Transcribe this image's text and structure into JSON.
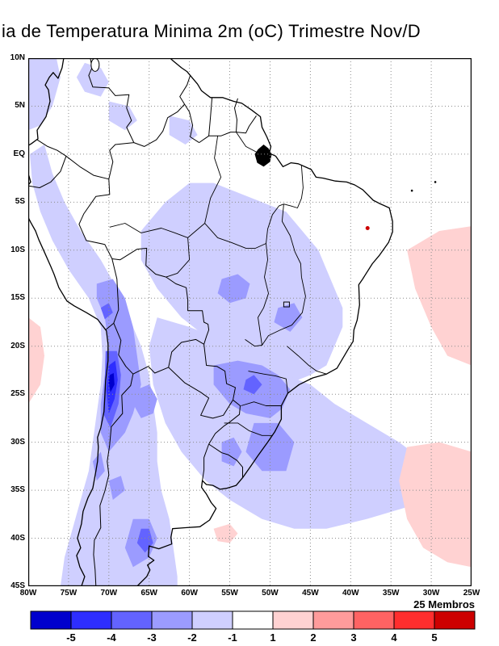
{
  "title": "ia de Temperatura Minima 2m (oC) Trimestre Nov/D",
  "members_label": "25 Membros",
  "axes": {
    "lat_ticks": [
      "10N",
      "5N",
      "EQ",
      "5S",
      "10S",
      "15S",
      "20S",
      "25S",
      "30S",
      "35S",
      "40S",
      "45S"
    ],
    "lon_ticks": [
      "80W",
      "75W",
      "70W",
      "65W",
      "60W",
      "55W",
      "50W",
      "45W",
      "40W",
      "35W",
      "30W",
      "25W"
    ]
  },
  "colorbar": {
    "tick_labels": [
      "-5",
      "-4",
      "-3",
      "-2",
      "-1",
      "1",
      "2",
      "3",
      "4",
      "5"
    ],
    "segment_colors": [
      "#0000cd",
      "#2e2eff",
      "#6363ff",
      "#9b9bff",
      "#cfcfff",
      "#ffffff",
      "#ffd2d2",
      "#ff9b9b",
      "#ff6363",
      "#ff2e2e",
      "#cd0000"
    ]
  },
  "map_colors": {
    "grid": "#8c8c8c",
    "outline": "#000000",
    "marker_red": "#cc0000"
  },
  "chart_data": {
    "type": "heatmap",
    "title": "ia de Temperatura Minima 2m (oC) Trimestre Nov/D",
    "units": "oC",
    "ensemble": "25 Membros",
    "x_ticks": [
      "80W",
      "75W",
      "70W",
      "65W",
      "60W",
      "55W",
      "50W",
      "45W",
      "40W",
      "35W",
      "30W",
      "25W"
    ],
    "y_ticks": [
      "10N",
      "5N",
      "EQ",
      "5S",
      "10S",
      "15S",
      "20S",
      "25S",
      "30S",
      "35S",
      "40S",
      "45S"
    ],
    "scale_boundaries": [
      -5,
      -4,
      -3,
      -2,
      -1,
      1,
      2,
      3,
      4,
      5
    ],
    "legend_position": "bottom",
    "grid": "dotted",
    "anomaly_regions": [
      {
        "level": "-2 to -1",
        "palette_index": 4,
        "polygon": [
          [
            -78,
            1
          ],
          [
            -77,
            -2
          ],
          [
            -75.5,
            -5
          ],
          [
            -73.5,
            -8
          ],
          [
            -71,
            -11
          ],
          [
            -69,
            -14
          ],
          [
            -67.5,
            -17
          ],
          [
            -66,
            -20
          ],
          [
            -65,
            -23
          ],
          [
            -64.5,
            -26
          ],
          [
            -64,
            -29
          ],
          [
            -64,
            -32
          ],
          [
            -63.5,
            -35
          ],
          [
            -62.5,
            -38
          ],
          [
            -62,
            -41
          ],
          [
            -61.5,
            -44
          ],
          [
            -61.5,
            -45
          ],
          [
            -76,
            -45
          ],
          [
            -75.5,
            -42
          ],
          [
            -74.5,
            -39
          ],
          [
            -73.5,
            -36
          ],
          [
            -72.5,
            -33
          ],
          [
            -72,
            -30
          ],
          [
            -71.5,
            -27
          ],
          [
            -71,
            -24
          ],
          [
            -70.8,
            -21
          ],
          [
            -71,
            -18
          ],
          [
            -72.5,
            -15
          ],
          [
            -75,
            -12
          ],
          [
            -77,
            -9
          ],
          [
            -78.5,
            -6
          ],
          [
            -79.5,
            -3
          ],
          [
            -79.8,
            0
          ]
        ]
      },
      {
        "level": "-2 to -1",
        "palette_index": 4,
        "polygon": [
          [
            -60,
            -3
          ],
          [
            -57,
            -3
          ],
          [
            -54,
            -4
          ],
          [
            -51,
            -5
          ],
          [
            -48,
            -6
          ],
          [
            -46,
            -8
          ],
          [
            -44,
            -10
          ],
          [
            -43,
            -12
          ],
          [
            -42,
            -14
          ],
          [
            -41,
            -16
          ],
          [
            -41,
            -18
          ],
          [
            -42,
            -20
          ],
          [
            -43,
            -22
          ],
          [
            -45,
            -23
          ],
          [
            -48,
            -24
          ],
          [
            -51,
            -24
          ],
          [
            -54,
            -23
          ],
          [
            -56,
            -21
          ],
          [
            -58,
            -19
          ],
          [
            -61,
            -17
          ],
          [
            -64,
            -14
          ],
          [
            -66,
            -11
          ],
          [
            -66,
            -8
          ],
          [
            -63,
            -5
          ]
        ]
      },
      {
        "level": "-2 to -1",
        "palette_index": 4,
        "polygon": [
          [
            -64,
            -17
          ],
          [
            -60,
            -18
          ],
          [
            -57,
            -19
          ],
          [
            -54,
            -20
          ],
          [
            -51,
            -21
          ],
          [
            -48,
            -23
          ],
          [
            -45,
            -24
          ],
          [
            -42,
            -26
          ],
          [
            -38,
            -28
          ],
          [
            -34,
            -30
          ],
          [
            -30,
            -32.5
          ],
          [
            -28,
            -34
          ],
          [
            -30,
            -36
          ],
          [
            -34,
            -37
          ],
          [
            -38,
            -38
          ],
          [
            -43,
            -39
          ],
          [
            -47,
            -39
          ],
          [
            -51,
            -38
          ],
          [
            -55,
            -36
          ],
          [
            -58,
            -34
          ],
          [
            -61,
            -31
          ],
          [
            -63,
            -28
          ],
          [
            -64.5,
            -24
          ],
          [
            -65,
            -20
          ]
        ]
      },
      {
        "level": "-2 to -1",
        "palette_index": 4,
        "polygon": [
          [
            -80,
            10
          ],
          [
            -76.5,
            10
          ],
          [
            -76,
            8
          ],
          [
            -77,
            5
          ],
          [
            -78.5,
            3
          ],
          [
            -80,
            2.5
          ]
        ]
      },
      {
        "level": "-2 to -1",
        "palette_index": 4,
        "polygon": [
          [
            -73,
            9.5
          ],
          [
            -71,
            9
          ],
          [
            -70,
            7.5
          ],
          [
            -71,
            6
          ],
          [
            -73,
            6.5
          ],
          [
            -74,
            8
          ]
        ]
      },
      {
        "level": "-2 to -1",
        "palette_index": 4,
        "polygon": [
          [
            -70,
            5.5
          ],
          [
            -67.5,
            5
          ],
          [
            -66.5,
            3.5
          ],
          [
            -68,
            2.5
          ],
          [
            -70,
            3.5
          ]
        ]
      },
      {
        "level": "-2 to -1",
        "palette_index": 4,
        "polygon": [
          [
            -62.5,
            4
          ],
          [
            -60,
            3.5
          ],
          [
            -59,
            2
          ],
          [
            -60.5,
            1
          ],
          [
            -62.5,
            2
          ]
        ]
      },
      {
        "level": "-3 to -2",
        "palette_index": 3,
        "polygon": [
          [
            -71.5,
            -13.5
          ],
          [
            -69.5,
            -13
          ],
          [
            -68,
            -15
          ],
          [
            -67,
            -18
          ],
          [
            -66.5,
            -21
          ],
          [
            -66,
            -24
          ],
          [
            -67,
            -27
          ],
          [
            -68,
            -29
          ],
          [
            -70,
            -31
          ],
          [
            -71,
            -29
          ],
          [
            -71,
            -26
          ],
          [
            -70.5,
            -23
          ],
          [
            -70,
            -20
          ],
          [
            -70.5,
            -17
          ],
          [
            -71.5,
            -15
          ]
        ]
      },
      {
        "level": "-3 to -2",
        "palette_index": 3,
        "polygon": [
          [
            -57,
            -22
          ],
          [
            -54,
            -21.5
          ],
          [
            -51,
            -22
          ],
          [
            -49,
            -23
          ],
          [
            -47.5,
            -24.5
          ],
          [
            -48.5,
            -26.5
          ],
          [
            -50,
            -27.5
          ],
          [
            -53,
            -27
          ],
          [
            -55,
            -26
          ],
          [
            -57,
            -24
          ]
        ]
      },
      {
        "level": "-3 to -2",
        "palette_index": 3,
        "polygon": [
          [
            -56,
            -13
          ],
          [
            -54,
            -12.5
          ],
          [
            -52.5,
            -13.5
          ],
          [
            -53,
            -15
          ],
          [
            -55,
            -15.5
          ],
          [
            -56.5,
            -14.5
          ]
        ]
      },
      {
        "level": "-3 to -2",
        "palette_index": 3,
        "polygon": [
          [
            -49,
            -16
          ],
          [
            -47,
            -15.5
          ],
          [
            -46,
            -17
          ],
          [
            -47.5,
            -18.5
          ],
          [
            -49.5,
            -17.5
          ]
        ]
      },
      {
        "level": "-3 to -2",
        "palette_index": 3,
        "polygon": [
          [
            -67,
            -38
          ],
          [
            -65,
            -38
          ],
          [
            -64,
            -40
          ],
          [
            -65,
            -42
          ],
          [
            -67,
            -43
          ],
          [
            -68,
            -41
          ]
        ]
      },
      {
        "level": "-3 to -2",
        "palette_index": 3,
        "polygon": [
          [
            -70,
            -34
          ],
          [
            -68.5,
            -33.5
          ],
          [
            -68,
            -35
          ],
          [
            -69.5,
            -36
          ]
        ]
      },
      {
        "level": "-3 to -2",
        "palette_index": 3,
        "polygon": [
          [
            -52,
            -28
          ],
          [
            -49,
            -28
          ],
          [
            -47,
            -30
          ],
          [
            -48,
            -33
          ],
          [
            -51,
            -33
          ],
          [
            -53,
            -31
          ]
        ]
      },
      {
        "level": "-3 to -2",
        "palette_index": 3,
        "polygon": [
          [
            -72,
            -32
          ],
          [
            -71,
            -31
          ],
          [
            -70.5,
            -33
          ],
          [
            -71.5,
            -34
          ]
        ]
      },
      {
        "level": "-3 to -2",
        "palette_index": 3,
        "polygon": [
          [
            -66.5,
            -24.5
          ],
          [
            -65,
            -24
          ],
          [
            -64,
            -25.5
          ],
          [
            -64.5,
            -27
          ],
          [
            -66,
            -27.5
          ],
          [
            -67,
            -26
          ]
        ]
      },
      {
        "level": "-3 to -2",
        "palette_index": 3,
        "polygon": [
          [
            -56,
            -30
          ],
          [
            -54.5,
            -29.5
          ],
          [
            -53.5,
            -31
          ],
          [
            -54.5,
            -32.5
          ],
          [
            -56,
            -32
          ]
        ]
      },
      {
        "level": "-4 to -3",
        "palette_index": 2,
        "polygon": [
          [
            -70.4,
            -20.5
          ],
          [
            -69,
            -20.5
          ],
          [
            -68.5,
            -23
          ],
          [
            -68.8,
            -26
          ],
          [
            -69.8,
            -28.5
          ],
          [
            -70.7,
            -27
          ],
          [
            -70.5,
            -23.5
          ]
        ]
      },
      {
        "level": "-4 to -3",
        "palette_index": 2,
        "polygon": [
          [
            -71,
            -16
          ],
          [
            -70,
            -15.5
          ],
          [
            -69.5,
            -16.5
          ],
          [
            -70.5,
            -17.2
          ]
        ]
      },
      {
        "level": "-4 to -3",
        "palette_index": 2,
        "polygon": [
          [
            -66,
            -39
          ],
          [
            -65,
            -39
          ],
          [
            -64.5,
            -40.5
          ],
          [
            -65.5,
            -41.5
          ],
          [
            -66.5,
            -40.5
          ]
        ]
      },
      {
        "level": "-4 to -3",
        "palette_index": 2,
        "polygon": [
          [
            -53,
            -23.5
          ],
          [
            -52,
            -23
          ],
          [
            -51,
            -24
          ],
          [
            -52,
            -25
          ],
          [
            -53.3,
            -24.5
          ]
        ]
      },
      {
        "level": "-5 to -4",
        "palette_index": 1,
        "polygon": [
          [
            -70,
            -22
          ],
          [
            -69.2,
            -21.5
          ],
          [
            -68.9,
            -23.5
          ],
          [
            -69.3,
            -25.5
          ],
          [
            -70,
            -27
          ],
          [
            -70.3,
            -24.5
          ]
        ]
      },
      {
        "level": "below -5",
        "palette_index": 0,
        "polygon": [
          [
            -69.9,
            -23
          ],
          [
            -69.4,
            -22.8
          ],
          [
            -69.3,
            -24
          ],
          [
            -69.8,
            -24.8
          ],
          [
            -70,
            -23.8
          ]
        ]
      },
      {
        "level": "1 to 2",
        "palette_index": 6,
        "polygon": [
          [
            -33,
            -10
          ],
          [
            -29,
            -8
          ],
          [
            -25,
            -7.5
          ],
          [
            -25,
            -22
          ],
          [
            -28,
            -21
          ],
          [
            -30,
            -18
          ],
          [
            -32,
            -14
          ]
        ]
      },
      {
        "level": "1 to 2",
        "palette_index": 6,
        "polygon": [
          [
            -33,
            -30.5
          ],
          [
            -29,
            -30
          ],
          [
            -25,
            -31
          ],
          [
            -25,
            -43
          ],
          [
            -28,
            -42.5
          ],
          [
            -31,
            -41
          ],
          [
            -33,
            -38
          ],
          [
            -34,
            -34
          ]
        ]
      },
      {
        "level": "1 to 2",
        "palette_index": 6,
        "polygon": [
          [
            -57,
            -39
          ],
          [
            -55,
            -38.5
          ],
          [
            -54,
            -39.5
          ],
          [
            -55,
            -40.5
          ],
          [
            -56.5,
            -40.3
          ]
        ]
      },
      {
        "level": "1 to 2",
        "palette_index": 6,
        "polygon": [
          [
            -80,
            -17
          ],
          [
            -78.5,
            -18
          ],
          [
            -78,
            -21
          ],
          [
            -78.5,
            -24
          ],
          [
            -80,
            -26
          ]
        ]
      }
    ]
  }
}
